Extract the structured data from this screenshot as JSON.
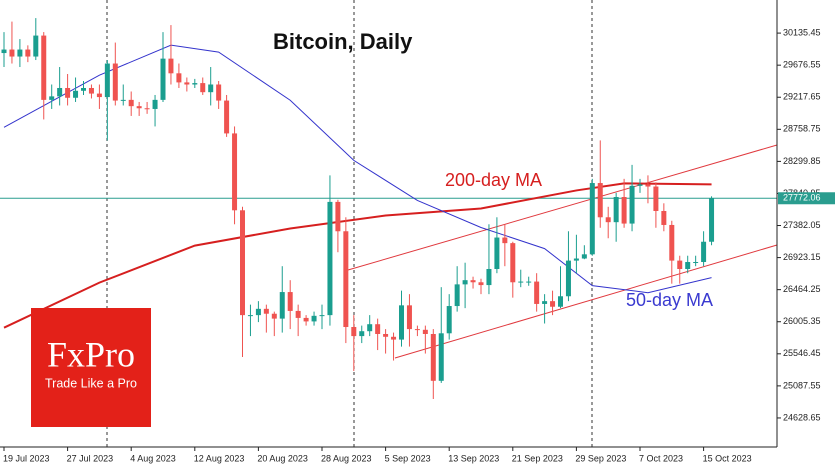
{
  "chart_data": {
    "type": "candlestick",
    "title": "Bitcoin, Daily",
    "x": [
      "2023-07-19",
      "2023-07-20",
      "2023-07-21",
      "2023-07-22",
      "2023-07-23",
      "2023-07-24",
      "2023-07-25",
      "2023-07-26",
      "2023-07-27",
      "2023-07-28",
      "2023-07-29",
      "2023-07-30",
      "2023-07-31",
      "2023-08-01",
      "2023-08-02",
      "2023-08-03",
      "2023-08-04",
      "2023-08-05",
      "2023-08-06",
      "2023-08-07",
      "2023-08-08",
      "2023-08-09",
      "2023-08-10",
      "2023-08-11",
      "2023-08-12",
      "2023-08-13",
      "2023-08-14",
      "2023-08-15",
      "2023-08-16",
      "2023-08-17",
      "2023-08-18",
      "2023-08-19",
      "2023-08-20",
      "2023-08-21",
      "2023-08-22",
      "2023-08-23",
      "2023-08-24",
      "2023-08-25",
      "2023-08-26",
      "2023-08-27",
      "2023-08-28",
      "2023-08-29",
      "2023-08-30",
      "2023-08-31",
      "2023-09-01",
      "2023-09-02",
      "2023-09-03",
      "2023-09-04",
      "2023-09-05",
      "2023-09-06",
      "2023-09-07",
      "2023-09-08",
      "2023-09-09",
      "2023-09-10",
      "2023-09-11",
      "2023-09-12",
      "2023-09-13",
      "2023-09-14",
      "2023-09-15",
      "2023-09-16",
      "2023-09-17",
      "2023-09-18",
      "2023-09-19",
      "2023-09-20",
      "2023-09-21",
      "2023-09-22",
      "2023-09-23",
      "2023-09-24",
      "2023-09-25",
      "2023-09-26",
      "2023-09-27",
      "2023-09-28",
      "2023-09-29",
      "2023-09-30",
      "2023-10-01",
      "2023-10-02",
      "2023-10-03",
      "2023-10-04",
      "2023-10-05",
      "2023-10-06",
      "2023-10-07",
      "2023-10-08",
      "2023-10-09",
      "2023-10-10",
      "2023-10-11",
      "2023-10-12",
      "2023-10-13",
      "2023-10-14",
      "2023-10-15",
      "2023-10-16"
    ],
    "open": [
      29850,
      29900,
      29800,
      29900,
      29800,
      30100,
      29180,
      29230,
      29350,
      29210,
      29310,
      29350,
      29270,
      29220,
      29700,
      29170,
      29180,
      29090,
      29060,
      29050,
      29180,
      29770,
      29560,
      29430,
      29400,
      29420,
      29290,
      29400,
      29170,
      28700,
      27600,
      26100,
      26100,
      26190,
      26120,
      26050,
      26430,
      26160,
      26060,
      26010,
      26090,
      26100,
      27720,
      27300,
      25930,
      25800,
      25870,
      25970,
      25830,
      25790,
      25750,
      26240,
      25900,
      25890,
      25830,
      25160,
      25840,
      26230,
      26540,
      26600,
      26570,
      26530,
      26760,
      27210,
      27130,
      26570,
      26580,
      26580,
      26260,
      26300,
      26220,
      26370,
      26880,
      26910,
      26970,
      27990,
      27500,
      27430,
      27790,
      27410,
      27950,
      27970,
      27940,
      27590,
      27390,
      26880,
      26760,
      26860,
      26860,
      27150
    ],
    "high": [
      30150,
      30300,
      30050,
      29960,
      30350,
      30150,
      29400,
      29650,
      29550,
      29500,
      29450,
      29400,
      29400,
      29750,
      30000,
      29400,
      29300,
      29150,
      29150,
      29250,
      30150,
      30250,
      29700,
      29500,
      29480,
      29500,
      29650,
      29450,
      29250,
      28800,
      27650,
      26250,
      26300,
      26250,
      26150,
      26800,
      26600,
      26250,
      26100,
      26150,
      26250,
      28100,
      27750,
      27500,
      26100,
      25950,
      26100,
      26050,
      25900,
      25850,
      26450,
      26400,
      25950,
      25950,
      25900,
      26500,
      26400,
      26800,
      26850,
      26650,
      26620,
      27400,
      27500,
      27400,
      27150,
      26750,
      26650,
      26700,
      26400,
      26450,
      26800,
      27300,
      27250,
      27100,
      28050,
      28600,
      27650,
      27850,
      28050,
      28250,
      28050,
      28100,
      28000,
      27700,
      27450,
      26950,
      26950,
      26950,
      27300,
      27800
    ],
    "low": [
      29650,
      29700,
      29650,
      29720,
      29750,
      28900,
      29050,
      29100,
      29100,
      29150,
      29250,
      29200,
      29050,
      28600,
      29100,
      29100,
      28950,
      28950,
      28980,
      28800,
      29150,
      29400,
      29350,
      29300,
      29350,
      29250,
      29100,
      29050,
      28650,
      27400,
      25500,
      25800,
      26000,
      25850,
      25800,
      25850,
      25900,
      25800,
      25950,
      25950,
      25900,
      25950,
      27000,
      25700,
      25300,
      25700,
      25800,
      25600,
      25550,
      25450,
      25650,
      25650,
      25800,
      25550,
      24900,
      25130,
      25750,
      26150,
      26200,
      26480,
      26400,
      26400,
      26700,
      26800,
      26350,
      26500,
      26520,
      26150,
      25980,
      26100,
      26200,
      26300,
      26700,
      26900,
      26950,
      27350,
      27200,
      27150,
      27350,
      27300,
      27850,
      27700,
      27350,
      27300,
      26550,
      26550,
      26700,
      26800,
      26800,
      27100
    ],
    "close": [
      29900,
      29800,
      29900,
      29800,
      30100,
      29180,
      29230,
      29350,
      29210,
      29310,
      29350,
      29270,
      29220,
      29700,
      29170,
      29180,
      29090,
      29060,
      29050,
      29180,
      29770,
      29560,
      29430,
      29400,
      29420,
      29290,
      29400,
      29170,
      28700,
      27600,
      26100,
      26100,
      26190,
      26120,
      26050,
      26430,
      26160,
      26060,
      26010,
      26090,
      26100,
      27720,
      27300,
      25930,
      25800,
      25870,
      25970,
      25830,
      25790,
      25750,
      26240,
      25900,
      25890,
      25830,
      25160,
      25840,
      26230,
      26540,
      26600,
      26570,
      26530,
      26760,
      27210,
      27130,
      26570,
      26580,
      26580,
      26260,
      26300,
      26220,
      26370,
      26880,
      26910,
      26970,
      27990,
      27500,
      27430,
      27790,
      27410,
      27950,
      27970,
      27940,
      27590,
      27390,
      26880,
      26760,
      26860,
      26860,
      27150,
      27772.06
    ],
    "up_color": "#1a9e8f",
    "down_color": "#ef5350",
    "last_price": 27772.06,
    "last_price_color": "#2a9d8f",
    "moving_averages": [
      {
        "name": "200-day MA",
        "color": "#d61f1f",
        "x": [
          "2023-07-19",
          "2023-07-31",
          "2023-08-12",
          "2023-08-24",
          "2023-09-05",
          "2023-09-17",
          "2023-09-29",
          "2023-10-05",
          "2023-10-16"
        ],
        "values": [
          25920,
          26565,
          27095,
          27339,
          27525,
          27626,
          27884,
          27985,
          27970
        ]
      },
      {
        "name": "50-day MA",
        "color": "#3333cc",
        "x": [
          "2023-07-19",
          "2023-07-31",
          "2023-08-09",
          "2023-08-15",
          "2023-08-24",
          "2023-09-01",
          "2023-09-09",
          "2023-09-17",
          "2023-09-25",
          "2023-10-01",
          "2023-10-08",
          "2023-10-16"
        ],
        "values": [
          28787,
          29533,
          29963,
          29863,
          29175,
          28314,
          27741,
          27354,
          27052,
          26522,
          26421,
          26636
        ]
      }
    ],
    "ylim": [
      24213,
      30609
    ],
    "yticks": [
      24628.65,
      25087.55,
      25546.45,
      26005.35,
      26464.25,
      26923.15,
      27382.05,
      27840.95,
      28299.85,
      28758.75,
      29217.65,
      29676.55,
      30135.45
    ],
    "xticks": [
      {
        "value": "2023-07-19",
        "label": "19 Jul 2023"
      },
      {
        "value": "2023-07-27",
        "label": "27 Jul 2023"
      },
      {
        "value": "2023-08-04",
        "label": "4 Aug 2023"
      },
      {
        "value": "2023-08-12",
        "label": "12 Aug 2023"
      },
      {
        "value": "2023-08-20",
        "label": "20 Aug 2023"
      },
      {
        "value": "2023-08-28",
        "label": "28 Aug 2023"
      },
      {
        "value": "2023-09-05",
        "label": "5 Sep 2023"
      },
      {
        "value": "2023-09-13",
        "label": "13 Sep 2023"
      },
      {
        "value": "2023-09-21",
        "label": "21 Sep 2023"
      },
      {
        "value": "2023-09-29",
        "label": "29 Sep 2023"
      },
      {
        "value": "2023-10-07",
        "label": "7 Oct 2023"
      },
      {
        "value": "2023-10-15",
        "label": "15 Oct 2023"
      }
    ]
  },
  "logo": {
    "brand": "FxPro",
    "slogan": "Trade Like a Pro"
  }
}
